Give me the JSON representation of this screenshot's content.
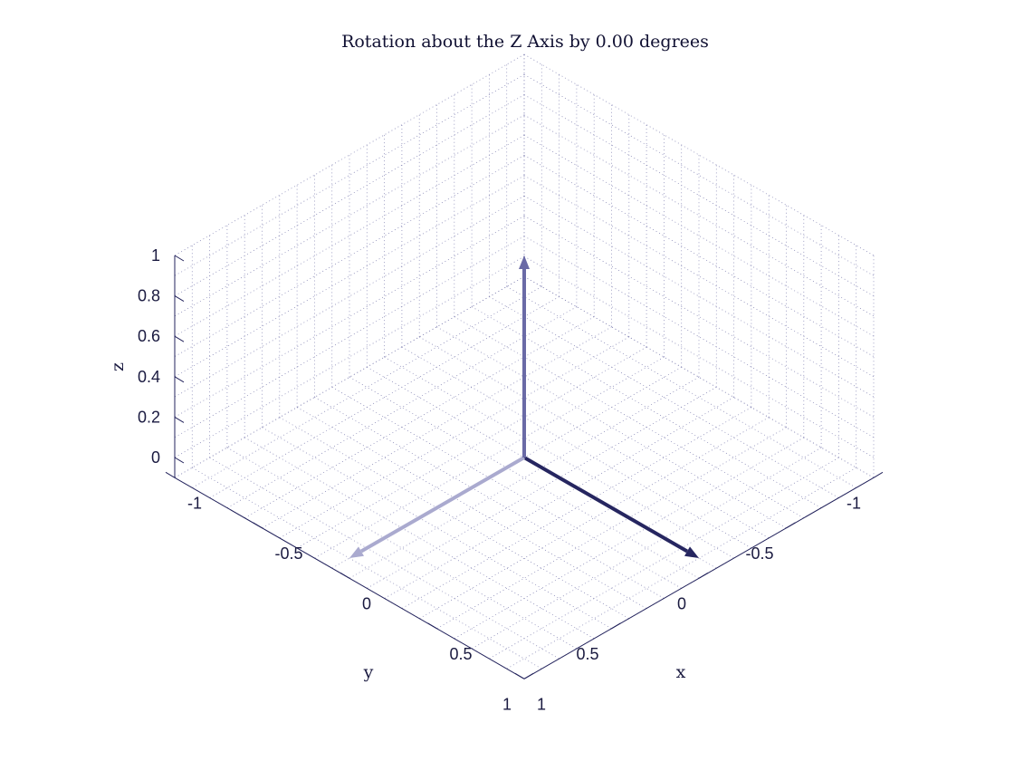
{
  "chart_data": {
    "type": "quiver3d",
    "title": "Rotation about the Z Axis by 0.00 degrees",
    "xlabel": "x",
    "ylabel": "y",
    "zlabel": "z",
    "xlim": [
      -1,
      1
    ],
    "ylim": [
      -1,
      1
    ],
    "zlim": [
      -0.1,
      1
    ],
    "x_ticks": [
      -1,
      -0.5,
      0,
      0.5,
      1
    ],
    "y_ticks": [
      -1,
      -0.5,
      0,
      0.5,
      1
    ],
    "z_ticks": [
      0,
      0.2,
      0.4,
      0.6,
      0.8,
      1
    ],
    "x_tick_labels": [
      "-1",
      "-0.5",
      "0",
      "0.5",
      "1"
    ],
    "y_tick_labels": [
      "-1",
      "-0.5",
      "0",
      "0.5",
      "1"
    ],
    "z_tick_labels": [
      "0",
      "0.2",
      "0.4",
      "0.6",
      "0.8",
      "1"
    ],
    "grid": "on",
    "grid_style": "dotted",
    "view": {
      "azimuth": -45,
      "elevation": 30
    },
    "vectors": [
      {
        "origin": [
          0,
          0,
          0
        ],
        "direction": [
          1,
          0,
          0
        ],
        "color": "#262660"
      },
      {
        "origin": [
          0,
          0,
          0
        ],
        "direction": [
          0,
          1,
          0
        ],
        "color": "#aaaacf"
      },
      {
        "origin": [
          0,
          0,
          0
        ],
        "direction": [
          0,
          0,
          1
        ],
        "color": "#6a6aa6"
      }
    ]
  },
  "colors": {
    "background": "#ffffff",
    "axis": "#23235c",
    "grid": "#8c8cb8",
    "text": "#1a1a40"
  }
}
